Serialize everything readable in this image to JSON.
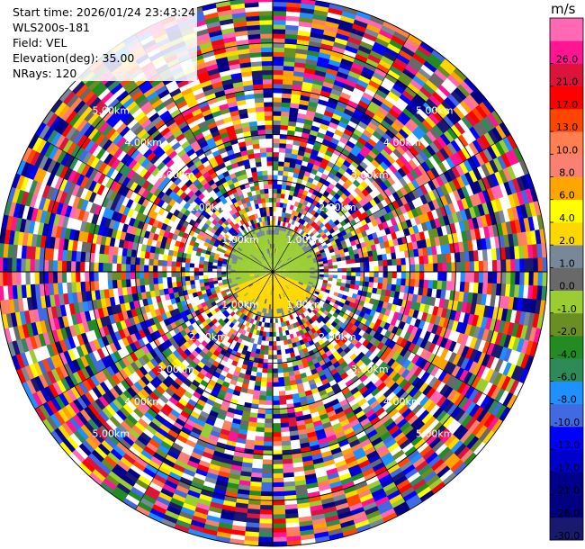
{
  "info": {
    "start_time": "Start time: 2026/01/24 23:43:24",
    "station": "WLS200s-181",
    "field": "Field: VEL",
    "elevation": "Elevation(deg): 35.00",
    "nrays": "NRays: 120"
  },
  "colorbar": {
    "unit": "m/s",
    "bins": [
      {
        "label": "-30.0",
        "color": "#191970"
      },
      {
        "label": "-26.0",
        "color": "#000080"
      },
      {
        "label": "-21.0",
        "color": "#00008b"
      },
      {
        "label": "-17.0",
        "color": "#0000cd"
      },
      {
        "label": "-13.0",
        "color": "#0000ff"
      },
      {
        "label": "-10.0",
        "color": "#4169e1"
      },
      {
        "label": "-8.0",
        "color": "#1e90ff"
      },
      {
        "label": "-6.0",
        "color": "#2e8b57"
      },
      {
        "label": "-4.0",
        "color": "#228b22"
      },
      {
        "label": "-2.0",
        "color": "#6b8e23"
      },
      {
        "label": "-1.0",
        "color": "#9acd32"
      },
      {
        "label": "0.0",
        "color": "#696969"
      },
      {
        "label": "1.0",
        "color": "#778899"
      },
      {
        "label": "2.0",
        "color": "#ffd700"
      },
      {
        "label": "4.0",
        "color": "#ffff00"
      },
      {
        "label": "6.0",
        "color": "#ffa500"
      },
      {
        "label": "8.0",
        "color": "#fa8072"
      },
      {
        "label": "10.0",
        "color": "#ff7f50"
      },
      {
        "label": "13.0",
        "color": "#ff4500"
      },
      {
        "label": "17.0",
        "color": "#ff0000"
      },
      {
        "label": "21.0",
        "color": "#dc143c"
      },
      {
        "label": "26.0",
        "color": "#ff1493"
      },
      {
        "label": "",
        "color": "#ff69b4"
      }
    ]
  },
  "chart_data": {
    "type": "heatmap",
    "projection": "polar",
    "field": "VEL",
    "unit": "m/s",
    "nrays": 120,
    "elevation_deg": 35.0,
    "max_range_km": 6.0,
    "range_rings": [
      {
        "km": 1.0,
        "label": "1.00km"
      },
      {
        "km": 2.0,
        "label": "2.00km"
      },
      {
        "km": 3.0,
        "label": "3.00km"
      },
      {
        "km": 4.0,
        "label": "4.00km"
      },
      {
        "km": 5.0,
        "label": "5.00km"
      }
    ],
    "near_field": {
      "description_ranges_km": [
        0.0,
        1.0
      ],
      "positive_sector_deg": [
        110,
        250
      ],
      "positive_color": "#ffd700",
      "negative_color": "#9acd32",
      "edge_color": "#778899"
    }
  }
}
